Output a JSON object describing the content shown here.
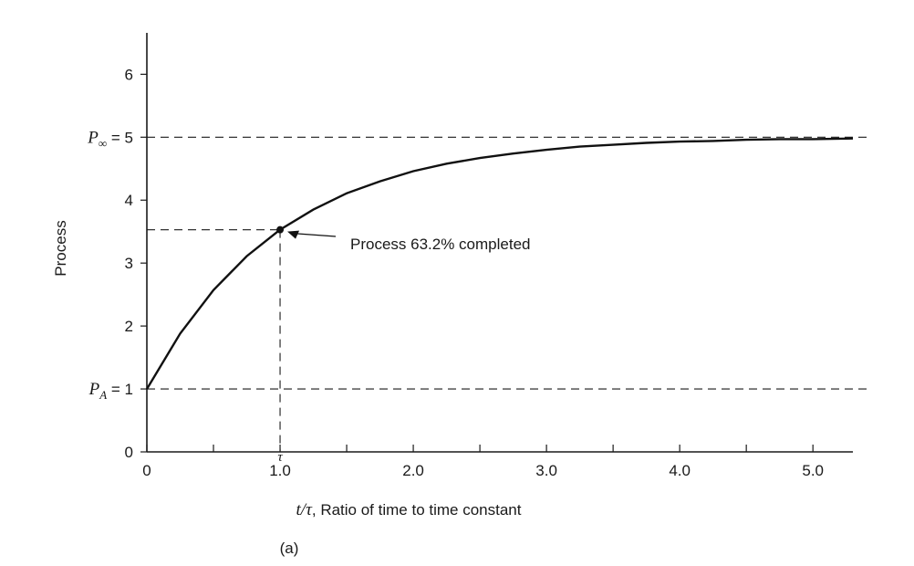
{
  "chart_data": {
    "type": "line",
    "ylabel": "Process",
    "xlabel": {
      "var": "t/τ",
      "text": ", Ratio of time to time constant"
    },
    "caption": "(a)",
    "xlim": [
      0,
      5.3
    ],
    "ylim": [
      0,
      6.6
    ],
    "x_ticks": [
      0,
      0.5,
      1.0,
      1.5,
      2.0,
      2.5,
      3.0,
      3.5,
      4.0,
      4.5,
      5.0
    ],
    "x_tick_labels": [
      {
        "value": 0,
        "label": "0"
      },
      {
        "value": 1.0,
        "label": "1.0"
      },
      {
        "value": 2.0,
        "label": "2.0"
      },
      {
        "value": 3.0,
        "label": "3.0"
      },
      {
        "value": 4.0,
        "label": "4.0"
      },
      {
        "value": 5.0,
        "label": "5.0"
      }
    ],
    "y_tick_labels": [
      {
        "value": 0,
        "label": "0"
      },
      {
        "value": 2,
        "label": "2"
      },
      {
        "value": 3,
        "label": "3"
      },
      {
        "value": 4,
        "label": "4"
      },
      {
        "value": 6,
        "label": "6"
      }
    ],
    "y_special_labels": [
      {
        "value": 5,
        "sym": "P",
        "sub": "∞",
        "rest": " = 5"
      },
      {
        "value": 1,
        "sym": "P",
        "sub": "A",
        "rest": " = 1"
      }
    ],
    "tau_label": "τ",
    "series": [
      {
        "x": [
          0,
          0.25,
          0.5,
          0.75,
          1.0,
          1.25,
          1.5,
          1.75,
          2.0,
          2.25,
          2.5,
          2.75,
          3.0,
          3.25,
          3.5,
          3.75,
          4.0,
          4.25,
          4.5,
          4.75,
          5.0,
          5.3
        ],
        "y": [
          1.0,
          1.88,
          2.57,
          3.11,
          3.53,
          3.85,
          4.11,
          4.3,
          4.46,
          4.58,
          4.67,
          4.74,
          4.8,
          4.85,
          4.88,
          4.91,
          4.93,
          4.94,
          4.96,
          4.97,
          4.97,
          4.98
        ]
      }
    ],
    "reference_lines": [
      {
        "axis": "y",
        "value": 5
      },
      {
        "axis": "y",
        "value": 1
      }
    ],
    "marker": {
      "x": 1.0,
      "y": 3.53
    },
    "annotation": {
      "text": "Process 63.2% completed",
      "x": 1.0,
      "y": 3.53
    }
  }
}
